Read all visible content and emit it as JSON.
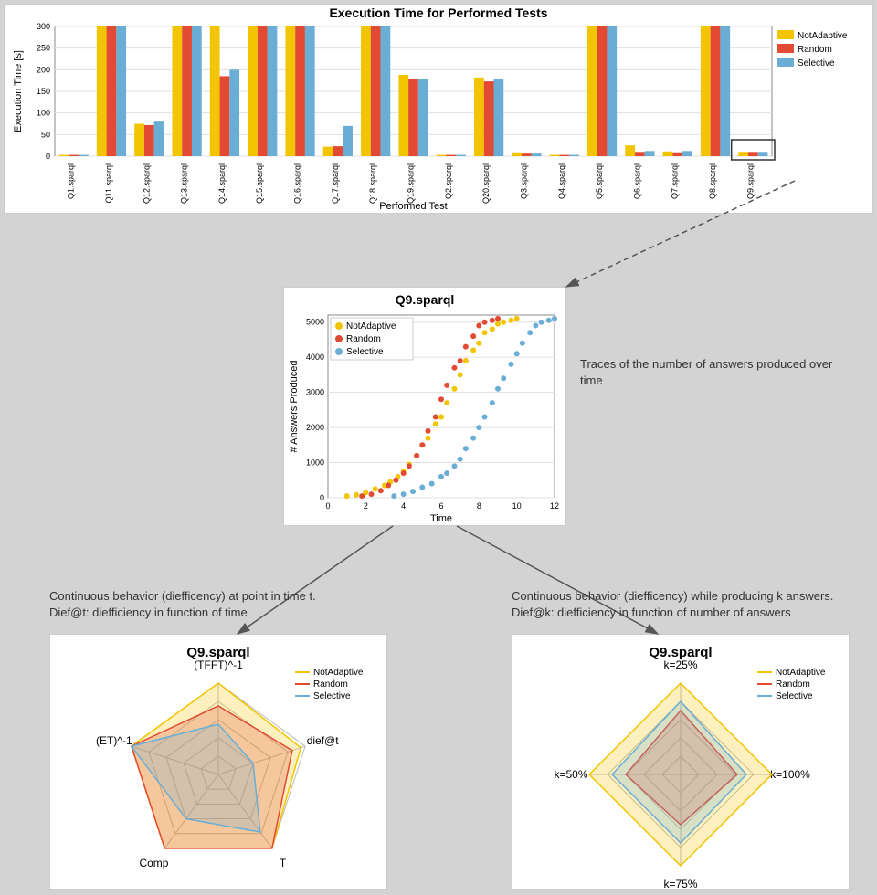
{
  "colors": {
    "NotAdaptive": "#f2c500",
    "Random": "#e24a33",
    "Selective": "#6aaed6",
    "background": "#ffffff",
    "page_bg": "#d3d3d3",
    "grid": "#e0e0e0",
    "text": "#333333",
    "arrow": "#555555"
  },
  "series_names": [
    "NotAdaptive",
    "Random",
    "Selective"
  ],
  "top_chart": {
    "type": "bar",
    "title": "Execution Time for Performed Tests",
    "xlabel": "Performed Test",
    "ylabel": "Execution Time [s]",
    "title_fontsize": 14,
    "label_fontsize": 11,
    "ylim": [
      0,
      300
    ],
    "ytick_step": 50,
    "categories": [
      "Q1.sparql",
      "Q11.sparql",
      "Q12.sparql",
      "Q13.sparql",
      "Q14.sparql",
      "Q15.sparql",
      "Q16.sparql",
      "Q17.sparql",
      "Q18.sparql",
      "Q19.sparql",
      "Q2.sparql",
      "Q20.sparql",
      "Q3.sparql",
      "Q4.sparql",
      "Q5.sparql",
      "Q6.sparql",
      "Q7.sparql",
      "Q8.sparql",
      "Q9.sparql"
    ],
    "values": {
      "NotAdaptive": [
        3,
        300,
        75,
        300,
        300,
        300,
        300,
        22,
        300,
        188,
        3,
        182,
        9,
        3,
        300,
        25,
        11,
        300,
        10
      ],
      "Random": [
        3,
        300,
        72,
        300,
        185,
        300,
        300,
        23,
        300,
        178,
        3,
        173,
        6,
        3,
        300,
        10,
        9,
        300,
        10
      ],
      "Selective": [
        3,
        300,
        80,
        300,
        200,
        300,
        300,
        70,
        300,
        178,
        3,
        178,
        6,
        3,
        300,
        12,
        12,
        300,
        10
      ]
    },
    "bar_width": 0.26,
    "legend_position": "top-right",
    "highlight_category": "Q9.sparql"
  },
  "mid_chart": {
    "type": "scatter-line",
    "title": "Q9.sparql",
    "xlabel": "Time",
    "ylabel": "# Answers Produced",
    "title_fontsize": 14,
    "label_fontsize": 11,
    "xlim": [
      0,
      12
    ],
    "ylim": [
      0,
      5200
    ],
    "xtick_step": 2,
    "ytick_step": 1000,
    "marker_size": 3,
    "series": {
      "NotAdaptive": [
        [
          1.0,
          50
        ],
        [
          1.5,
          80
        ],
        [
          2.0,
          150
        ],
        [
          2.5,
          250
        ],
        [
          3.0,
          350
        ],
        [
          3.3,
          450
        ],
        [
          3.7,
          600
        ],
        [
          4.0,
          750
        ],
        [
          4.3,
          950
        ],
        [
          4.7,
          1200
        ],
        [
          5.0,
          1500
        ],
        [
          5.3,
          1700
        ],
        [
          5.7,
          2100
        ],
        [
          6.0,
          2300
        ],
        [
          6.3,
          2700
        ],
        [
          6.7,
          3100
        ],
        [
          7.0,
          3500
        ],
        [
          7.3,
          3900
        ],
        [
          7.7,
          4200
        ],
        [
          8.0,
          4400
        ],
        [
          8.3,
          4700
        ],
        [
          8.7,
          4800
        ],
        [
          9.0,
          4950
        ],
        [
          9.3,
          5000
        ],
        [
          9.7,
          5050
        ],
        [
          10.0,
          5100
        ]
      ],
      "Random": [
        [
          1.8,
          50
        ],
        [
          2.3,
          100
        ],
        [
          2.8,
          200
        ],
        [
          3.2,
          350
        ],
        [
          3.6,
          500
        ],
        [
          4.0,
          700
        ],
        [
          4.3,
          900
        ],
        [
          4.7,
          1200
        ],
        [
          5.0,
          1500
        ],
        [
          5.3,
          1900
        ],
        [
          5.7,
          2300
        ],
        [
          6.0,
          2800
        ],
        [
          6.3,
          3200
        ],
        [
          6.7,
          3700
        ],
        [
          7.0,
          3900
        ],
        [
          7.3,
          4300
        ],
        [
          7.7,
          4600
        ],
        [
          8.0,
          4900
        ],
        [
          8.3,
          5000
        ],
        [
          8.7,
          5050
        ],
        [
          9.0,
          5100
        ]
      ],
      "Selective": [
        [
          3.5,
          50
        ],
        [
          4.0,
          100
        ],
        [
          4.5,
          180
        ],
        [
          5.0,
          300
        ],
        [
          5.5,
          400
        ],
        [
          6.0,
          600
        ],
        [
          6.3,
          700
        ],
        [
          6.7,
          900
        ],
        [
          7.0,
          1100
        ],
        [
          7.3,
          1400
        ],
        [
          7.7,
          1700
        ],
        [
          8.0,
          2000
        ],
        [
          8.3,
          2300
        ],
        [
          8.7,
          2700
        ],
        [
          9.0,
          3100
        ],
        [
          9.3,
          3400
        ],
        [
          9.7,
          3800
        ],
        [
          10.0,
          4100
        ],
        [
          10.3,
          4400
        ],
        [
          10.7,
          4700
        ],
        [
          11.0,
          4900
        ],
        [
          11.3,
          5000
        ],
        [
          11.7,
          5050
        ],
        [
          12.0,
          5100
        ]
      ]
    },
    "legend_position": "top-left"
  },
  "radar_left": {
    "type": "radar",
    "title": "Q9.sparql",
    "title_fontsize": 15,
    "axes": [
      "(TFFT)^-1",
      "dief@t",
      "T",
      "Comp",
      "(ET)^-1"
    ],
    "rings": 5,
    "fill_opacity": 0.25,
    "line_width": 1.5,
    "values": {
      "NotAdaptive": [
        1.0,
        0.95,
        1.0,
        1.0,
        1.0
      ],
      "Random": [
        0.75,
        0.85,
        1.0,
        1.0,
        1.0
      ],
      "Selective": [
        0.55,
        0.4,
        0.78,
        0.6,
        1.0
      ]
    },
    "legend_position": "top-right"
  },
  "radar_right": {
    "type": "radar",
    "title": "Q9.sparql",
    "title_fontsize": 15,
    "axes": [
      "k=25%",
      "k=100%",
      "k=75%",
      "k=50%"
    ],
    "rings": 5,
    "fill_opacity": 0.25,
    "line_width": 1.5,
    "values": {
      "NotAdaptive": [
        1.0,
        1.0,
        1.0,
        1.0
      ],
      "Random": [
        0.7,
        0.62,
        0.55,
        0.6
      ],
      "Selective": [
        0.8,
        0.72,
        0.75,
        0.75
      ]
    },
    "legend_position": "top-right"
  },
  "annotations": {
    "traces": "Traces of the number of answers produced over time",
    "left_desc": "Continuous behavior (diefficency) at point in time t.\nDief@t: diefficiency in function of time",
    "right_desc": "Continuous behavior (diefficency) while producing k answers.\nDief@k: diefficiency in function of number of answers"
  }
}
